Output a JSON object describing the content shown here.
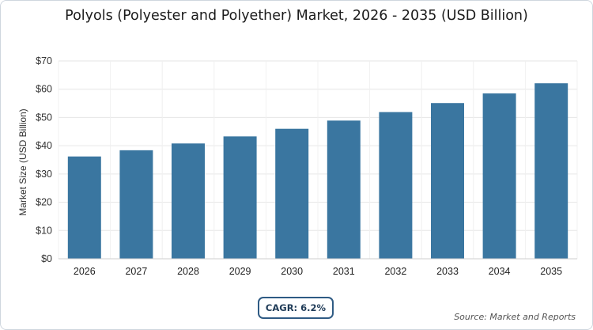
{
  "chart_data": {
    "type": "bar",
    "title": "Polyols (Polyester and Polyether) Market, 2026 - 2035 (USD Billion)",
    "categories": [
      "2026",
      "2027",
      "2028",
      "2029",
      "2030",
      "2031",
      "2032",
      "2033",
      "2034",
      "2035"
    ],
    "values": [
      36.2,
      38.4,
      40.8,
      43.3,
      46.0,
      48.9,
      51.9,
      55.1,
      58.5,
      62.1
    ],
    "ylabel": "Market Size (USD Billion)",
    "xlabel": "",
    "ylim": [
      0,
      70
    ],
    "yticks": [
      0,
      10,
      20,
      30,
      40,
      50,
      60,
      70
    ],
    "ytick_labels": [
      "$0",
      "$10",
      "$20",
      "$30",
      "$40",
      "$50",
      "$60",
      "$70"
    ],
    "grid": true,
    "bar_color": "#3a76a0"
  },
  "annotations": {
    "cagr": "CAGR: 6.2%",
    "source": "Source: Market and Reports"
  }
}
